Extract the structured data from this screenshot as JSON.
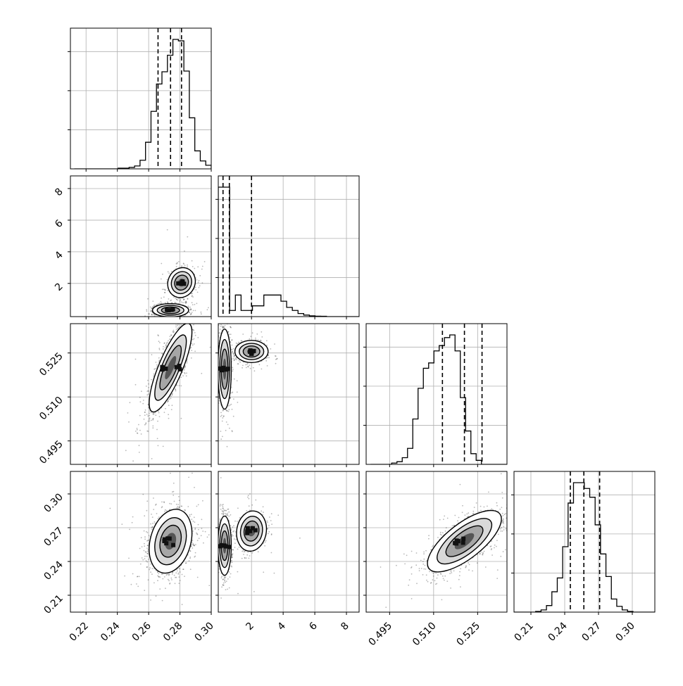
{
  "chart_data": {
    "type": "scatter",
    "plot_style": "corner",
    "parameters": [
      {
        "range": [
          0.21,
          0.3
        ],
        "ticks": [
          0.22,
          0.24,
          0.26,
          0.28,
          0.3
        ],
        "tick_labels": [
          "0.22",
          "0.24",
          "0.26",
          "0.28",
          "0.30"
        ],
        "quantiles": [
          0.266,
          0.274,
          0.281
        ]
      },
      {
        "range": [
          -0.1,
          8.8
        ],
        "ticks": [
          2,
          4,
          6,
          8
        ],
        "tick_labels": [
          "2",
          "4",
          "6",
          "8"
        ],
        "quantiles": [
          0.2,
          0.6,
          2.0
        ]
      },
      {
        "range": [
          0.487,
          0.535
        ],
        "ticks": [
          0.495,
          0.51,
          0.525
        ],
        "tick_labels": [
          "0.495",
          "0.510",
          "0.525"
        ],
        "quantiles": [
          0.513,
          0.5205,
          0.5265
        ]
      },
      {
        "range": [
          0.195,
          0.32
        ],
        "ticks": [
          0.21,
          0.24,
          0.27,
          0.3
        ],
        "tick_labels": [
          "0.21",
          "0.24",
          "0.27",
          "0.30"
        ],
        "quantiles": [
          0.245,
          0.257,
          0.271
        ]
      }
    ],
    "histograms": [
      {
        "param": 0,
        "x_start": 0.2125,
        "bin_width": 0.0035,
        "counts": [
          0,
          0,
          0,
          0,
          0,
          0,
          0,
          0,
          1,
          1,
          2,
          4,
          12,
          37,
          80,
          118,
          135,
          158,
          180,
          178,
          136,
          71,
          25,
          11,
          5,
          1
        ]
      },
      {
        "param": 1,
        "x_start": -0.1,
        "bin_width": 0.36,
        "counts": [
          84,
          84,
          4,
          14,
          4,
          4,
          7,
          7,
          14,
          14,
          14,
          10,
          6,
          4,
          2,
          1,
          0.5,
          0.3,
          0.2,
          0,
          0,
          0,
          0,
          0,
          0
        ]
      },
      {
        "param": 2,
        "x_start": 0.4885,
        "bin_width": 0.0018,
        "counts": [
          0,
          0,
          0,
          0,
          1,
          2,
          5,
          12,
          34,
          57,
          72,
          76,
          85,
          89,
          95,
          97,
          85,
          50,
          25,
          8,
          3,
          0,
          0,
          0,
          0,
          0
        ]
      },
      {
        "param": 3,
        "x_start": 0.195,
        "bin_width": 0.0048,
        "counts": [
          0,
          0,
          0,
          0,
          1,
          3,
          9,
          28,
          47,
          90,
          150,
          178,
          178,
          170,
          158,
          120,
          80,
          49,
          18,
          8,
          3,
          1,
          0,
          0,
          0,
          0
        ]
      }
    ],
    "pairs": [
      {
        "xparam": 0,
        "yparam": 1,
        "modes": [
          {
            "cx": 0.281,
            "cy": 2.05,
            "sx": 0.0042,
            "sy": 0.45,
            "rho": 0.1,
            "weight": 0.38
          },
          {
            "cx": 0.274,
            "cy": 0.3,
            "sx": 0.0055,
            "sy": 0.2,
            "rho": 0.0,
            "weight": 0.62
          }
        ]
      },
      {
        "xparam": 0,
        "yparam": 2,
        "modes": [
          {
            "cx": 0.274,
            "cy": 0.52,
            "sx": 0.0065,
            "sy": 0.0072,
            "rho": 0.8,
            "weight": 1.0
          }
        ]
      },
      {
        "xparam": 1,
        "yparam": 2,
        "modes": [
          {
            "cx": 2.0,
            "cy": 0.5255,
            "sx": 0.5,
            "sy": 0.0018,
            "rho": 0.0,
            "weight": 0.38
          },
          {
            "cx": 0.3,
            "cy": 0.5195,
            "sx": 0.2,
            "sy": 0.0065,
            "rho": 0.0,
            "weight": 0.62
          }
        ]
      },
      {
        "xparam": 0,
        "yparam": 3,
        "modes": [
          {
            "cx": 0.274,
            "cy": 0.258,
            "sx": 0.0065,
            "sy": 0.0135,
            "rho": 0.25,
            "weight": 1.0
          }
        ]
      },
      {
        "xparam": 1,
        "yparam": 3,
        "modes": [
          {
            "cx": 2.0,
            "cy": 0.267,
            "sx": 0.45,
            "sy": 0.0085,
            "rho": 0.1,
            "weight": 0.38
          },
          {
            "cx": 0.3,
            "cy": 0.254,
            "sx": 0.2,
            "sy": 0.0125,
            "rho": 0.0,
            "weight": 0.62
          }
        ]
      },
      {
        "xparam": 2,
        "yparam": 3,
        "modes": [
          {
            "cx": 0.5205,
            "cy": 0.258,
            "sx": 0.006,
            "sy": 0.013,
            "rho": 0.72,
            "weight": 1.0
          }
        ]
      }
    ],
    "colors": {
      "scatter": "#000000",
      "contour": "#000000",
      "grid": "#b0b0b0",
      "frame": "#000000",
      "quantile": "#000000"
    },
    "grid": true,
    "legend": "none"
  }
}
